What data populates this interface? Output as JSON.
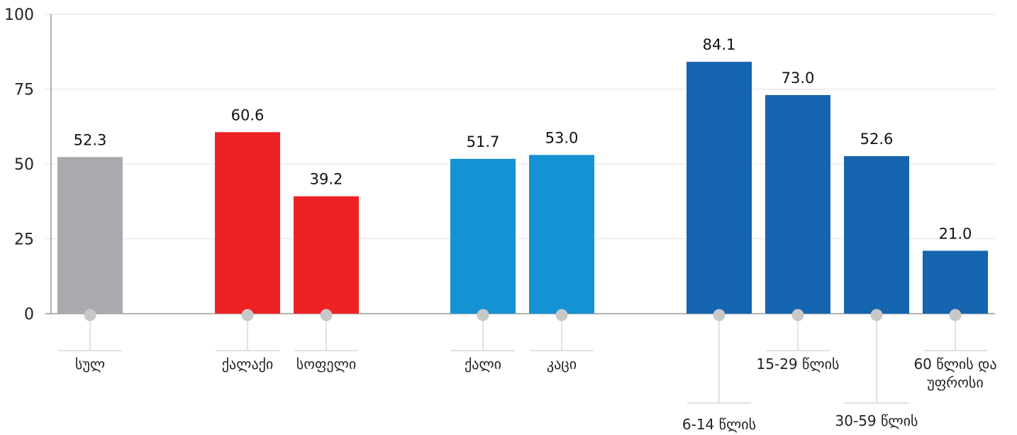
{
  "chart_data": {
    "type": "bar",
    "title": "",
    "xlabel": "",
    "ylabel": "",
    "ylim": [
      0,
      100
    ],
    "yticks": [
      0,
      25,
      50,
      75,
      100
    ],
    "grid": true,
    "value_format": "one-decimal",
    "bars": [
      {
        "category": "სულ",
        "value": 52.3,
        "color": "#a9a9ae",
        "group": "total"
      },
      {
        "category": "ქალაქი",
        "value": 60.6,
        "color": "#ee2224",
        "group": "settlement"
      },
      {
        "category": "სოფელი",
        "value": 39.2,
        "color": "#ee2224",
        "group": "settlement"
      },
      {
        "category": "ქალი",
        "value": 51.7,
        "color": "#1592d3",
        "group": "sex"
      },
      {
        "category": "კაცი",
        "value": 53.0,
        "color": "#1592d3",
        "group": "sex"
      },
      {
        "category": "6-14 წლის",
        "value": 84.1,
        "color": "#1565b0",
        "group": "age"
      },
      {
        "category": "15-29 წლის",
        "value": 73.0,
        "color": "#1565b0",
        "group": "age"
      },
      {
        "category": "30-59 წლის",
        "value": 52.6,
        "color": "#1565b0",
        "group": "age"
      },
      {
        "category": "60 წლის და უფროსი",
        "value": 21.0,
        "color": "#1565b0",
        "group": "age",
        "label_lines": [
          "60 წლის და",
          "უფროსი"
        ]
      }
    ]
  }
}
